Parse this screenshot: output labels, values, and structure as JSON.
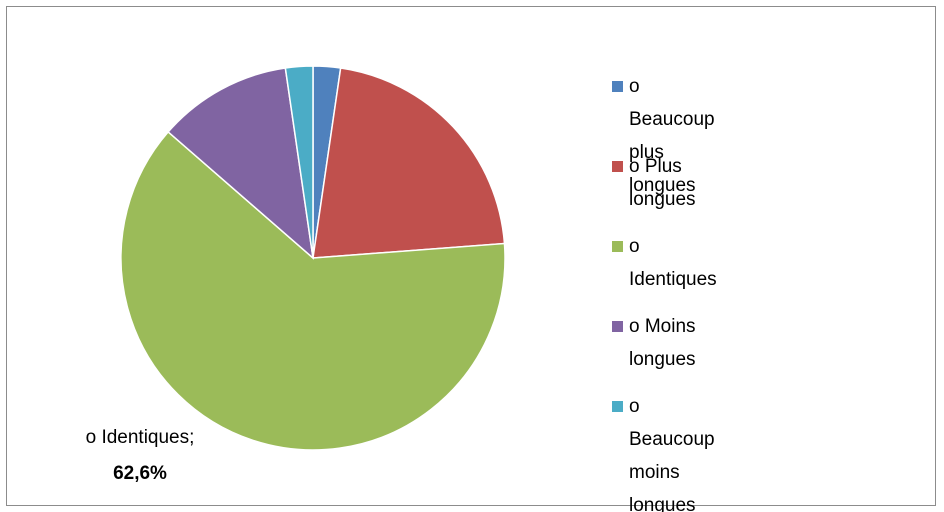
{
  "chart_data": {
    "type": "pie",
    "categories": [
      "o Beaucoup plus longues",
      "o Plus longues",
      "o Identiques",
      "o Moins longues",
      "o Beaucoup moins longues"
    ],
    "values": [
      2.3,
      21.5,
      62.6,
      11.3,
      2.3
    ],
    "value_labels": [
      null,
      null,
      "62,6%",
      null,
      null
    ],
    "label_separator": ";",
    "colors": [
      "#4f81bd",
      "#c0504d",
      "#9bbb59",
      "#8064a2",
      "#4bacc6"
    ],
    "legend": "right"
  }
}
